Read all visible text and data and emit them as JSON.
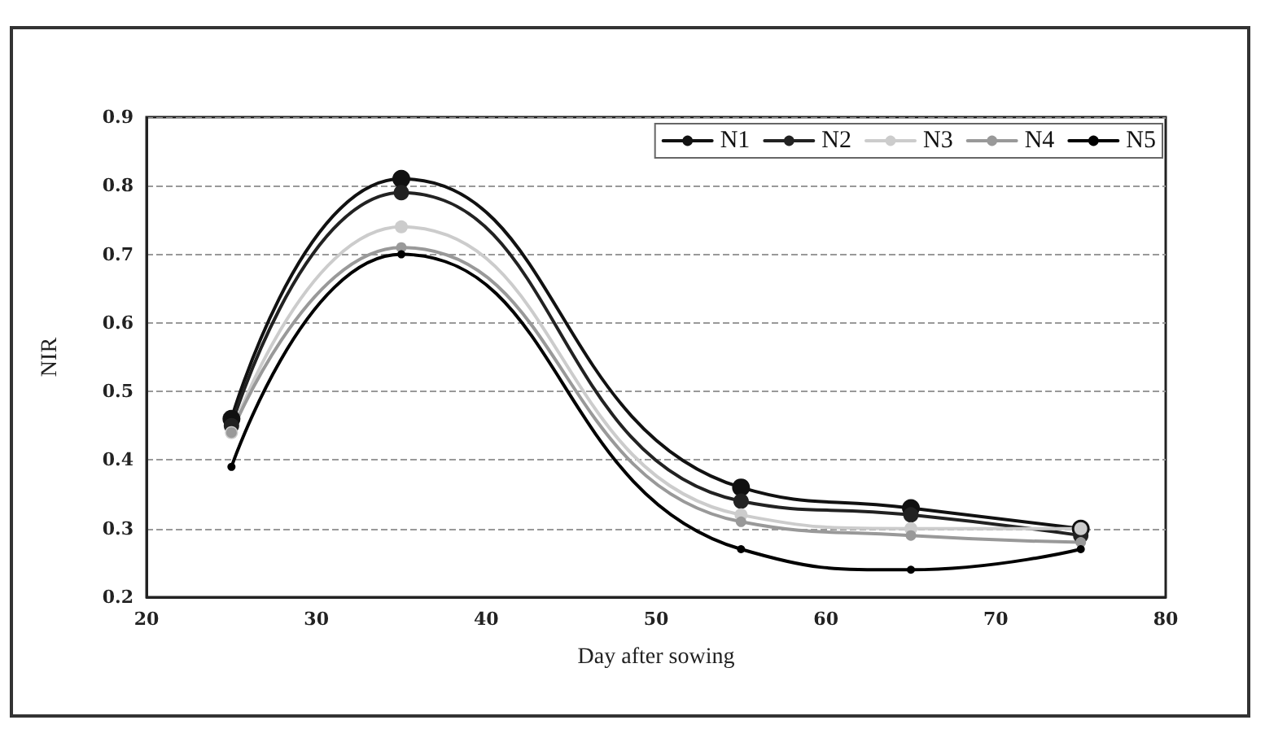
{
  "chart_data": {
    "type": "line",
    "xlabel": "Day after sowing",
    "ylabel": "NIR",
    "x": [
      25,
      35,
      55,
      65,
      75
    ],
    "series": [
      {
        "name": "N1",
        "color": "#111111",
        "values": [
          0.46,
          0.81,
          0.36,
          0.33,
          0.3
        ]
      },
      {
        "name": "N2",
        "color": "#222222",
        "values": [
          0.45,
          0.79,
          0.34,
          0.32,
          0.29
        ]
      },
      {
        "name": "N3",
        "color": "#cccccc",
        "values": [
          0.44,
          0.74,
          0.32,
          0.3,
          0.3
        ]
      },
      {
        "name": "N4",
        "color": "#999999",
        "values": [
          0.44,
          0.71,
          0.31,
          0.29,
          0.28
        ]
      },
      {
        "name": "N5",
        "color": "#000000",
        "values": [
          0.39,
          0.7,
          0.27,
          0.24,
          0.27
        ]
      }
    ],
    "xlim": [
      20,
      80
    ],
    "xticks": [
      20,
      30,
      40,
      50,
      60,
      70,
      80
    ],
    "ylim": [
      0.2,
      0.9
    ],
    "yticks": [
      0.2,
      0.3,
      0.4,
      0.5,
      0.6,
      0.7,
      0.8,
      0.9
    ],
    "grid": "y",
    "legend": "top right",
    "marker": "circle",
    "line_style": "solid"
  }
}
